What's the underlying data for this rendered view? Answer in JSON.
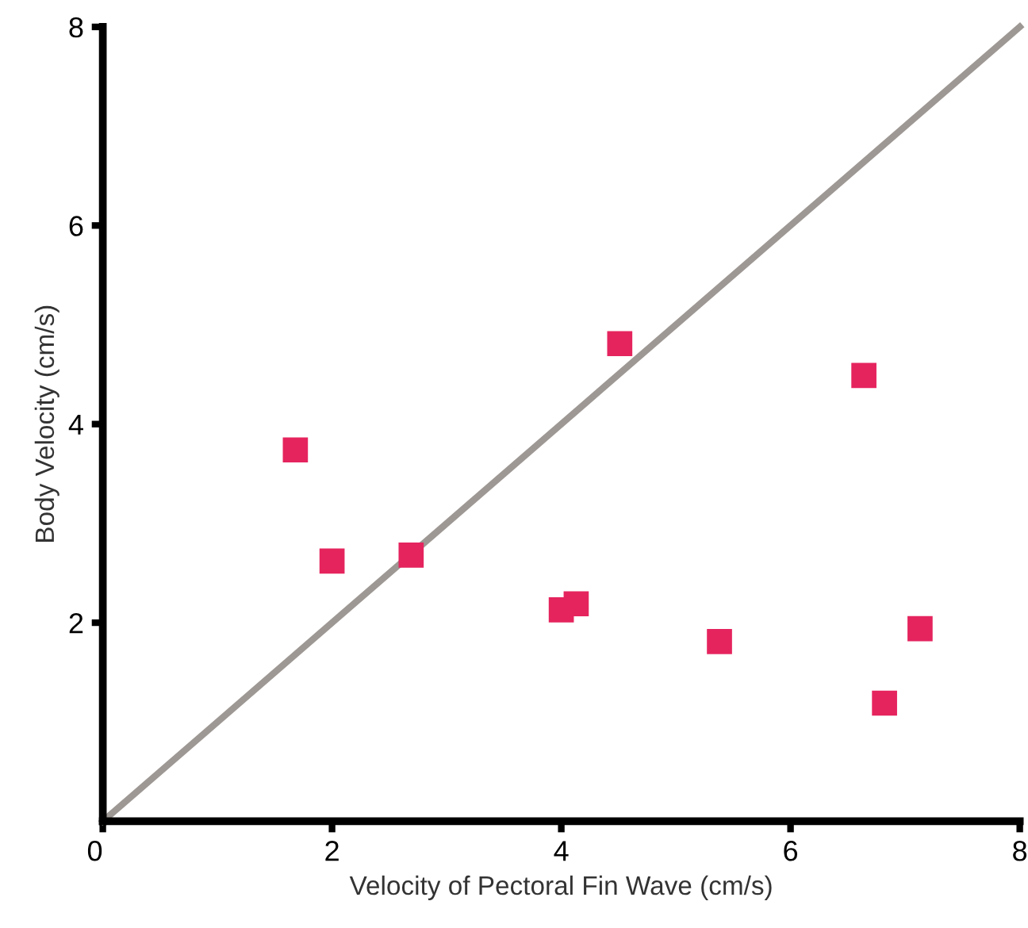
{
  "chart_data": {
    "type": "scatter",
    "xlabel": "Velocity of Pectoral Fin Wave (cm/s)",
    "ylabel": "Body Velocity (cm/s)",
    "xlim": [
      0,
      8
    ],
    "ylim": [
      0,
      8
    ],
    "xticks": [
      {
        "value": 0,
        "label": "0"
      },
      2,
      4,
      6,
      8
    ],
    "yticks": [
      2,
      4,
      6,
      8
    ],
    "grid": false,
    "legend": false,
    "marker": "square",
    "series": [
      {
        "type": "line",
        "color": "#9e9894",
        "x": [
          0,
          8
        ],
        "values": [
          0,
          8
        ],
        "marker": "none",
        "line_style": "solid"
      },
      {
        "color": "#e5245e",
        "x": [
          1.68,
          2.0,
          2.69,
          4.51,
          6.64,
          4.0,
          4.13,
          5.38,
          7.13,
          6.82
        ],
        "values": [
          3.74,
          2.62,
          2.68,
          4.81,
          4.49,
          2.13,
          2.19,
          1.81,
          1.94,
          1.19
        ]
      }
    ]
  }
}
